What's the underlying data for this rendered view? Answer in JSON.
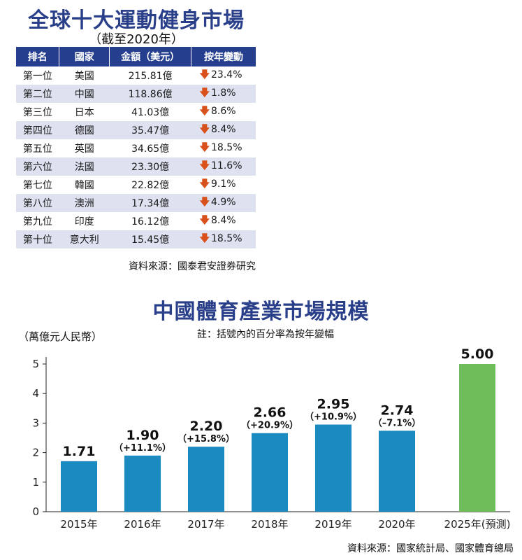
{
  "ranking": {
    "title": "全球十大運動健身市場",
    "subtitle": "（截至2020年）",
    "headers": [
      "排名",
      "國家",
      "金額（美元）",
      "按年變動"
    ],
    "rows": [
      {
        "rank": "第一位",
        "country": "美國",
        "amount": "215.81億",
        "change": "23.4%"
      },
      {
        "rank": "第二位",
        "country": "中國",
        "amount": "118.86億",
        "change": "1.8%"
      },
      {
        "rank": "第三位",
        "country": "日本",
        "amount": "41.03億",
        "change": "8.6%"
      },
      {
        "rank": "第四位",
        "country": "德國",
        "amount": "35.47億",
        "change": "8.4%"
      },
      {
        "rank": "第五位",
        "country": "英國",
        "amount": "34.65億",
        "change": "18.5%"
      },
      {
        "rank": "第六位",
        "country": "法國",
        "amount": "23.30億",
        "change": "11.6%"
      },
      {
        "rank": "第七位",
        "country": "韓國",
        "amount": "22.82億",
        "change": "9.1%"
      },
      {
        "rank": "第八位",
        "country": "澳洲",
        "amount": "17.34億",
        "change": "4.9%"
      },
      {
        "rank": "第九位",
        "country": "印度",
        "amount": "16.12億",
        "change": "8.4%"
      },
      {
        "rank": "第十位",
        "country": "意大利",
        "amount": "15.45億",
        "change": "18.5%"
      }
    ],
    "change_icon": "down-arrow-icon",
    "source": "資料來源：國泰君安證券研究"
  },
  "chart_data": {
    "type": "bar",
    "title": "中國體育產業市場規模",
    "ylabel": "（萬億元人民幣）",
    "note": "註：括號內的百分率為按年變幅",
    "categories": [
      "2015年",
      "2016年",
      "2017年",
      "2018年",
      "2019年",
      "2020年",
      "2025年(預測)"
    ],
    "values": [
      1.71,
      1.9,
      2.2,
      2.66,
      2.95,
      2.74,
      5.0
    ],
    "value_labels": [
      "1.71",
      "1.90",
      "2.20",
      "2.66",
      "2.95",
      "2.74",
      "5.00"
    ],
    "pct_labels": [
      "",
      "（+11.1%）",
      "（+15.8%）",
      "（+20.9%）",
      "（+10.9%）",
      "（–7.1%）",
      ""
    ],
    "yticks": [
      0,
      1,
      2,
      3,
      4,
      5
    ],
    "ylim": [
      0,
      5
    ],
    "grid": false,
    "colors": {
      "actual": "#1a8ac0",
      "forecast": "#6fbd5a",
      "header": "#253f8e",
      "arrow": "#d8511d"
    },
    "source": "資料來源：國家統計局、國家體育總局"
  }
}
